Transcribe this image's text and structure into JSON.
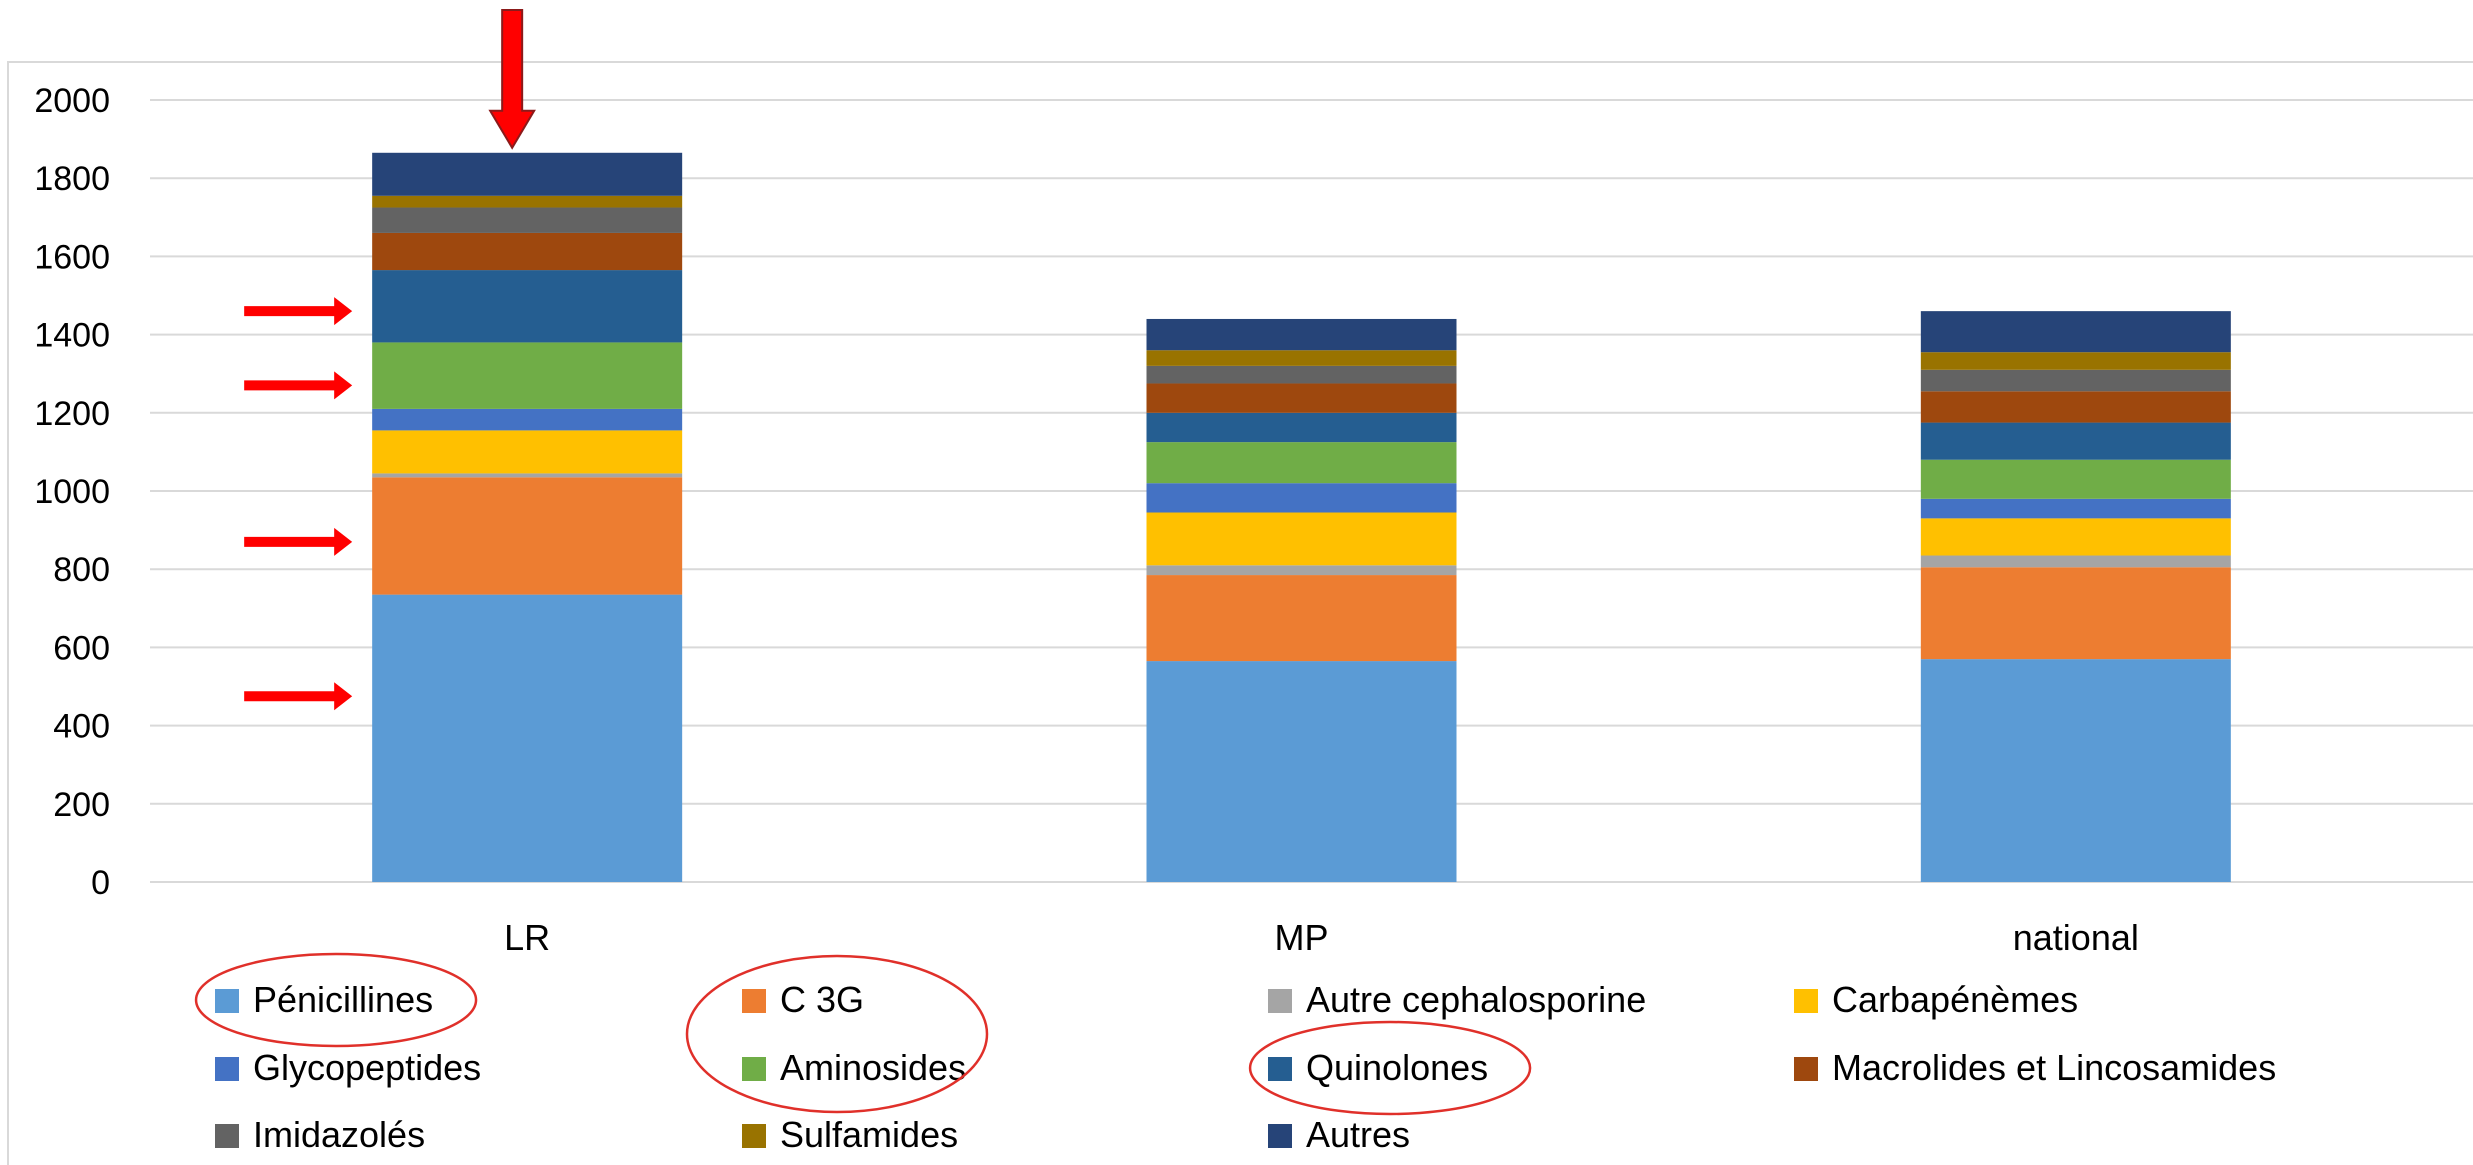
{
  "chart_data": {
    "type": "bar",
    "stacked": true,
    "categories": [
      "LR",
      "MP",
      "national"
    ],
    "series": [
      {
        "name": "Pénicillines",
        "color": "#5B9BD5",
        "values": [
          735,
          565,
          570
        ]
      },
      {
        "name": "C 3G",
        "color": "#ED7D31",
        "values": [
          300,
          220,
          235
        ]
      },
      {
        "name": "Autre cephalosporine",
        "color": "#A5A5A5",
        "values": [
          10,
          25,
          30
        ]
      },
      {
        "name": "Carbapénèmes",
        "color": "#FFC000",
        "values": [
          110,
          135,
          95
        ]
      },
      {
        "name": "Glycopeptides",
        "color": "#4472C4",
        "values": [
          55,
          75,
          50
        ]
      },
      {
        "name": "Aminosides",
        "color": "#70AD47",
        "values": [
          170,
          105,
          100
        ]
      },
      {
        "name": "Quinolones",
        "color": "#255E91",
        "values": [
          185,
          75,
          95
        ]
      },
      {
        "name": "Macrolides et Lincosamides",
        "color": "#9E480E",
        "values": [
          95,
          75,
          80
        ]
      },
      {
        "name": "Imidazolés",
        "color": "#636363",
        "values": [
          65,
          45,
          55
        ]
      },
      {
        "name": "Sulfamides",
        "color": "#997300",
        "values": [
          30,
          40,
          45
        ]
      },
      {
        "name": "Autres",
        "color": "#264478",
        "values": [
          110,
          80,
          105
        ]
      }
    ],
    "ylim": [
      0,
      2000
    ],
    "yticks": [
      "0",
      "200",
      "400",
      "600",
      "800",
      "1000",
      "1200",
      "1400",
      "1600",
      "1800",
      "2000"
    ],
    "grid": true,
    "legend_position": "bottom",
    "annotations": {
      "arrow_color": "#FF0000",
      "circle_color": "#E0302A",
      "arrow_targets": [
        {
          "category": "LR",
          "value": 1865
        },
        {
          "category": "LR",
          "value": 1460
        },
        {
          "category": "LR",
          "value": 1270
        },
        {
          "category": "LR",
          "value": 870
        },
        {
          "category": "LR",
          "value": 475
        }
      ],
      "circled_legend_entries": [
        "Pénicillines",
        "C 3G",
        "Aminosides",
        "Quinolones"
      ]
    }
  }
}
